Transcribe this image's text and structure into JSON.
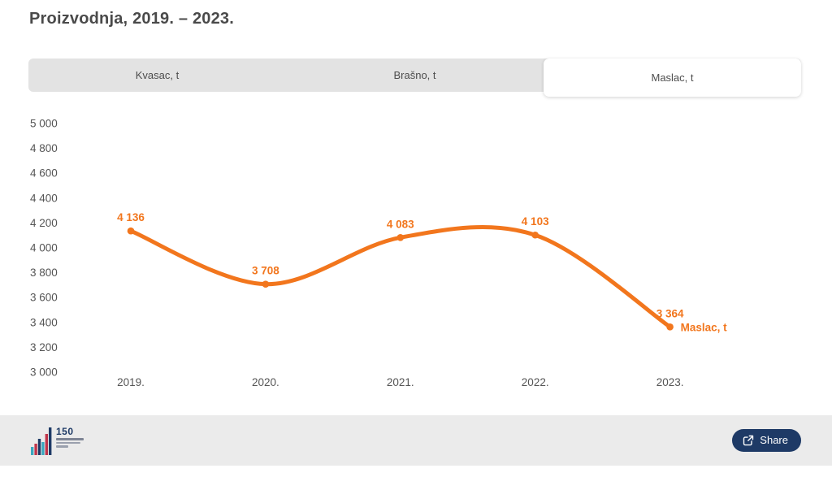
{
  "title": "Proizvodnja, 2019. – 2023.",
  "tabs": [
    {
      "label": "Kvasac, t",
      "active": false
    },
    {
      "label": "Brašno, t",
      "active": false
    },
    {
      "label": "Maslac, t",
      "active": true
    }
  ],
  "chart_data": {
    "type": "line",
    "title": "Proizvodnja, 2019. – 2023.",
    "x": [
      "2019.",
      "2020.",
      "2021.",
      "2022.",
      "2023."
    ],
    "series": [
      {
        "name": "Maslac, t",
        "values": [
          4136,
          3708,
          4083,
          4103,
          3364
        ],
        "color": "#f2761d"
      }
    ],
    "data_labels": [
      "4 136",
      "3 708",
      "4 083",
      "4 103",
      "3 364"
    ],
    "yticks": [
      {
        "label": "5 000",
        "value": 5000
      },
      {
        "label": "4 800",
        "value": 4800
      },
      {
        "label": "4 600",
        "value": 4600
      },
      {
        "label": "4 400",
        "value": 4400
      },
      {
        "label": "4 200",
        "value": 4200
      },
      {
        "label": "4 000",
        "value": 4000
      },
      {
        "label": "3 800",
        "value": 3800
      },
      {
        "label": "3 600",
        "value": 3600
      },
      {
        "label": "3 400",
        "value": 3400
      },
      {
        "label": "3 200",
        "value": 3200
      },
      {
        "label": "3 000",
        "value": 3000
      }
    ],
    "ylim": [
      3000,
      5000
    ],
    "xlabel": "",
    "ylabel": "",
    "grid": false,
    "legend_position": "end-of-line",
    "smooth": true
  },
  "footer": {
    "logo_text": "150",
    "share_label": "Share"
  },
  "colors": {
    "accent_orange": "#f2761d",
    "tab_gray": "#e3e3e3",
    "footer_gray": "#ebebeb",
    "navy": "#1e3a66",
    "title_text": "#4a4a4a",
    "axis_text": "#555555",
    "logo_teal": "#3aa7bf",
    "logo_red": "#c0344a"
  }
}
